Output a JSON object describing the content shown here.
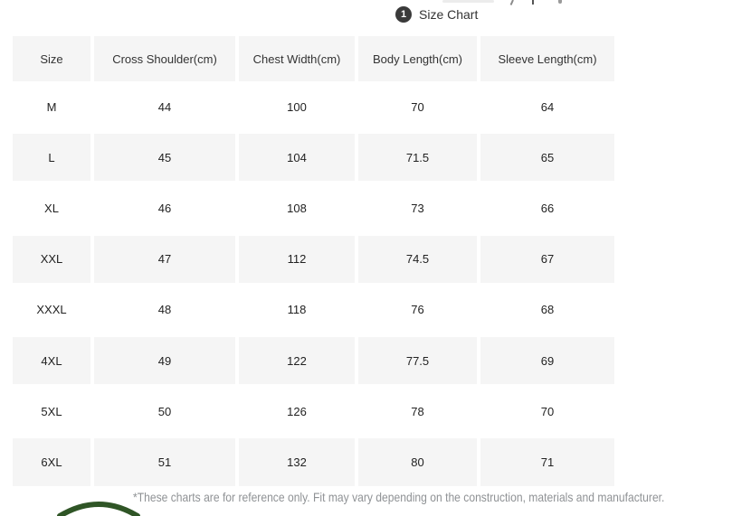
{
  "title_bar": {
    "step_number": "1",
    "label": "Size Chart"
  },
  "size_table": {
    "columns": [
      "Size",
      "Cross Shoulder(cm)",
      "Chest Width(cm)",
      "Body Length(cm)",
      "Sleeve Length(cm)"
    ],
    "rows": [
      [
        "M",
        "44",
        "100",
        "70",
        "64"
      ],
      [
        "L",
        "45",
        "104",
        "71.5",
        "65"
      ],
      [
        "XL",
        "46",
        "108",
        "73",
        "66"
      ],
      [
        "XXL",
        "47",
        "112",
        "74.5",
        "67"
      ],
      [
        "XXXL",
        "48",
        "118",
        "76",
        "68"
      ],
      [
        "4XL",
        "49",
        "122",
        "77.5",
        "69"
      ],
      [
        "5XL",
        "50",
        "126",
        "78",
        "70"
      ],
      [
        "6XL",
        "51",
        "132",
        "80",
        "71"
      ]
    ]
  },
  "footer": {
    "disclaimer": "*These charts are for reference only. Fit may vary depending on the construction, materials and manufacturer."
  },
  "colors": {
    "stripe": "#f5f5f5",
    "badge": "#3a3a3a",
    "product_green": "#2f5526"
  }
}
